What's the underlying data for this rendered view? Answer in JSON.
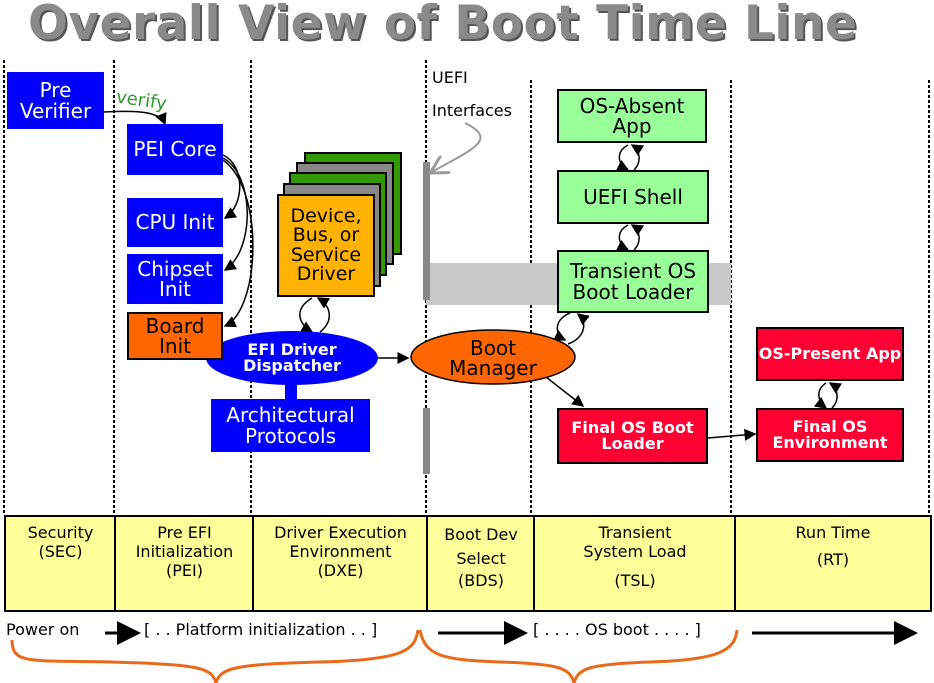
{
  "title": "Overall View of Boot Time Line",
  "uefi_label": [
    "UEFI",
    "Interfaces"
  ],
  "verify_label": "verify",
  "boxes": {
    "pre_verifier": "Pre Verifier",
    "pei_core": "PEI Core",
    "cpu_init": "CPU Init",
    "chipset_init": "Chipset Init",
    "board_init": "Board Init",
    "driver": "Device, Bus, or Service Driver",
    "efi_dispatcher": "EFI Driver Dispatcher",
    "arch_protocols": "Architectural Protocols",
    "boot_manager": "Boot Manager",
    "os_absent_app": "OS-Absent App",
    "uefi_shell": "UEFI Shell",
    "transient_loader": "Transient OS Boot Loader",
    "final_loader": "Final OS Boot Loader",
    "os_present_app": "OS-Present App",
    "final_env": "Final OS Environment"
  },
  "phases": [
    {
      "name": "Security",
      "abbr": "(SEC)"
    },
    {
      "name": "Pre EFI Initialization",
      "abbr": "(PEI)"
    },
    {
      "name": "Driver Execution Environment",
      "abbr": "(DXE)"
    },
    {
      "name": "Boot Dev Select",
      "abbr": "(BDS)"
    },
    {
      "name": "Transient System Load",
      "abbr": "(TSL)"
    },
    {
      "name": "Run Time",
      "abbr": "(RT)"
    }
  ],
  "timeline": {
    "power_on": "Power on",
    "platform_init": "[ . . Platform initialization . . ]",
    "os_boot": "[ . . . . OS boot . . . . ]"
  },
  "colors": {
    "blue": "#0000ff",
    "orange": "#ff6600",
    "green": "#99ff99",
    "red": "#ff0033",
    "phase": "#ffff99",
    "title": "#8a8a8a"
  }
}
